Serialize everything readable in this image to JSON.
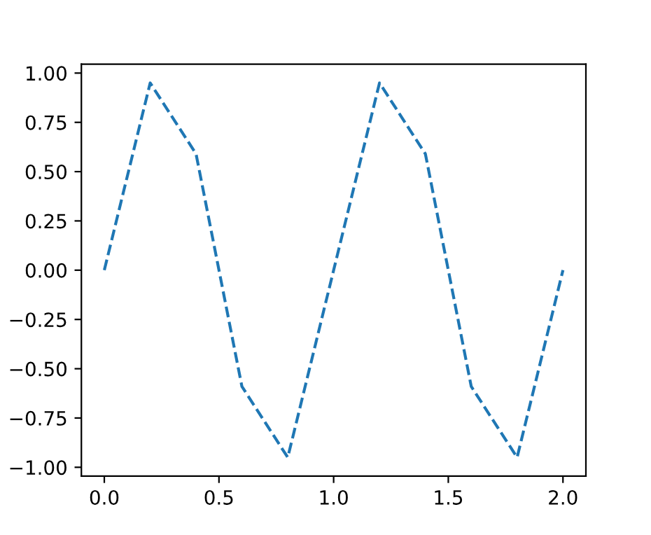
{
  "chart_data": {
    "type": "line",
    "x": [
      0.0,
      0.2,
      0.4,
      0.6,
      0.8,
      1.0,
      1.2,
      1.4,
      1.6,
      1.8,
      2.0
    ],
    "series": [
      {
        "color": "#1f77b4",
        "values": [
          0.0,
          0.95,
          0.59,
          -0.59,
          -0.95,
          0.0,
          0.95,
          0.59,
          -0.59,
          -0.95,
          0.0
        ]
      }
    ],
    "line_style": "dashed",
    "marker": "none",
    "xlim": [
      -0.1,
      2.1
    ],
    "ylim": [
      -1.045,
      1.045
    ],
    "xticks": [
      {
        "value": 0,
        "label": "0.0"
      },
      {
        "value": 0.5,
        "label": "0.5"
      },
      {
        "value": 1,
        "label": "1.0"
      },
      {
        "value": 1.5,
        "label": "1.5"
      },
      {
        "value": 2,
        "label": "2.0"
      }
    ],
    "yticks": [
      {
        "value": -1,
        "label": "−1.00"
      },
      {
        "value": -0.75,
        "label": "−0.75"
      },
      {
        "value": -0.5,
        "label": "−0.50"
      },
      {
        "value": -0.25,
        "label": "−0.25"
      },
      {
        "value": 0,
        "label": "0.00"
      },
      {
        "value": 0.25,
        "label": "0.25"
      },
      {
        "value": 0.5,
        "label": "0.50"
      },
      {
        "value": 0.75,
        "label": "0.75"
      },
      {
        "value": 1,
        "label": "1.00"
      }
    ],
    "grid": false,
    "legend": false
  }
}
